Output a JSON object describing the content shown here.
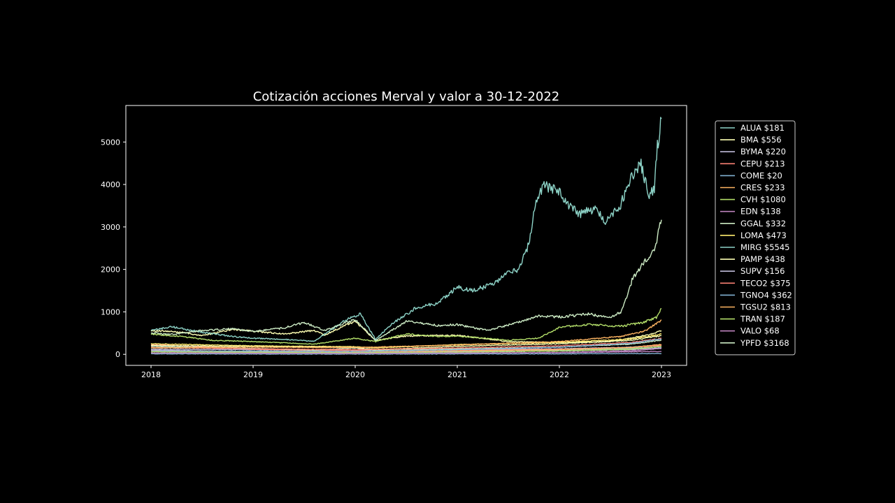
{
  "chart_data": {
    "type": "line",
    "title": "Cotización acciones Merval y valor a 30-12-2022",
    "xlabel": "",
    "ylabel": "",
    "xlim": [
      2018,
      2023
    ],
    "ylim": [
      -260,
      5860
    ],
    "x_ticks": [
      2018,
      2019,
      2020,
      2021,
      2022,
      2023
    ],
    "x_tick_labels": [
      "2018",
      "2019",
      "2020",
      "2021",
      "2022",
      "2023"
    ],
    "y_ticks": [
      0,
      1000,
      2000,
      3000,
      4000,
      5000
    ],
    "y_tick_labels": [
      "0",
      "1000",
      "2000",
      "3000",
      "4000",
      "5000"
    ],
    "grid": false,
    "legend_position": "outside-right",
    "background": "#000000",
    "series": [
      {
        "name": "ALUA $181",
        "color": "#8dd3c7",
        "points": [
          [
            2018,
            25
          ],
          [
            2019,
            30
          ],
          [
            2020,
            20
          ],
          [
            2021,
            60
          ],
          [
            2022,
            90
          ],
          [
            2022.6,
            130
          ],
          [
            2023,
            181
          ]
        ]
      },
      {
        "name": "BMA $556",
        "color": "#feffb3",
        "points": [
          [
            2018,
            560
          ],
          [
            2018.3,
            520
          ],
          [
            2018.5,
            440
          ],
          [
            2018.8,
            590
          ],
          [
            2019.3,
            480
          ],
          [
            2019.6,
            560
          ],
          [
            2019.7,
            450
          ],
          [
            2019.9,
            680
          ],
          [
            2020.0,
            780
          ],
          [
            2020.2,
            330
          ],
          [
            2020.5,
            430
          ],
          [
            2021.0,
            450
          ],
          [
            2021.5,
            300
          ],
          [
            2022.0,
            280
          ],
          [
            2022.5,
            300
          ],
          [
            2022.9,
            470
          ],
          [
            2023,
            556
          ]
        ]
      },
      {
        "name": "BYMA $220",
        "color": "#bfbbd9",
        "points": [
          [
            2018,
            120
          ],
          [
            2019,
            110
          ],
          [
            2020,
            90
          ],
          [
            2021,
            110
          ],
          [
            2022,
            130
          ],
          [
            2022.7,
            170
          ],
          [
            2023,
            220
          ]
        ]
      },
      {
        "name": "CEPU $213",
        "color": "#fa8174",
        "points": [
          [
            2018,
            230
          ],
          [
            2018.5,
            180
          ],
          [
            2019,
            120
          ],
          [
            2019.6,
            90
          ],
          [
            2020,
            100
          ],
          [
            2020.2,
            55
          ],
          [
            2021,
            90
          ],
          [
            2022,
            120
          ],
          [
            2022.7,
            160
          ],
          [
            2023,
            213
          ]
        ]
      },
      {
        "name": "COME $20",
        "color": "#81b1d2",
        "points": [
          [
            2018,
            12
          ],
          [
            2019,
            8
          ],
          [
            2020,
            6
          ],
          [
            2021,
            10
          ],
          [
            2022,
            12
          ],
          [
            2023,
            20
          ]
        ]
      },
      {
        "name": "CRES $233",
        "color": "#fdb462",
        "points": [
          [
            2018,
            90
          ],
          [
            2019,
            70
          ],
          [
            2020,
            55
          ],
          [
            2021,
            80
          ],
          [
            2022,
            110
          ],
          [
            2022.7,
            160
          ],
          [
            2023,
            233
          ]
        ]
      },
      {
        "name": "CVH $1080",
        "color": "#b3de69",
        "points": [
          [
            2018,
            480
          ],
          [
            2018.3,
            420
          ],
          [
            2018.6,
            330
          ],
          [
            2019,
            300
          ],
          [
            2019.6,
            240
          ],
          [
            2020,
            380
          ],
          [
            2020.2,
            300
          ],
          [
            2020.5,
            480
          ],
          [
            2020.8,
            420
          ],
          [
            2021,
            430
          ],
          [
            2021.5,
            330
          ],
          [
            2021.8,
            380
          ],
          [
            2022,
            640
          ],
          [
            2022.3,
            700
          ],
          [
            2022.6,
            660
          ],
          [
            2022.8,
            740
          ],
          [
            2022.95,
            860
          ],
          [
            2023,
            1080
          ]
        ]
      },
      {
        "name": "EDN $138",
        "color": "#bc82bd",
        "points": [
          [
            2018,
            60
          ],
          [
            2019,
            40
          ],
          [
            2020,
            25
          ],
          [
            2021,
            30
          ],
          [
            2022,
            45
          ],
          [
            2022.7,
            80
          ],
          [
            2023,
            138
          ]
        ]
      },
      {
        "name": "GGAL $332",
        "color": "#ccebc4",
        "points": [
          [
            2018,
            190
          ],
          [
            2018.5,
            160
          ],
          [
            2019,
            140
          ],
          [
            2019.6,
            100
          ],
          [
            2020,
            150
          ],
          [
            2020.2,
            90
          ],
          [
            2021,
            130
          ],
          [
            2022,
            170
          ],
          [
            2022.7,
            240
          ],
          [
            2023,
            332
          ]
        ]
      },
      {
        "name": "LOMA $473",
        "color": "#ffed6f",
        "points": [
          [
            2018,
            250
          ],
          [
            2019,
            200
          ],
          [
            2020,
            180
          ],
          [
            2020.2,
            150
          ],
          [
            2021,
            230
          ],
          [
            2022,
            280
          ],
          [
            2022.7,
            360
          ],
          [
            2023,
            473
          ]
        ]
      },
      {
        "name": "MIRG $5545",
        "color": "#8dd3c7",
        "points": [
          [
            2018,
            560
          ],
          [
            2018.2,
            650
          ],
          [
            2018.5,
            520
          ],
          [
            2018.8,
            420
          ],
          [
            2019,
            380
          ],
          [
            2019.3,
            350
          ],
          [
            2019.6,
            310
          ],
          [
            2019.9,
            800
          ],
          [
            2020.05,
            950
          ],
          [
            2020.2,
            350
          ],
          [
            2020.35,
            700
          ],
          [
            2020.6,
            1100
          ],
          [
            2020.8,
            1200
          ],
          [
            2021.0,
            1580
          ],
          [
            2021.15,
            1500
          ],
          [
            2021.35,
            1650
          ],
          [
            2021.5,
            1950
          ],
          [
            2021.6,
            2000
          ],
          [
            2021.7,
            2600
          ],
          [
            2021.78,
            3700
          ],
          [
            2021.85,
            4000
          ],
          [
            2022.0,
            3850
          ],
          [
            2022.1,
            3450
          ],
          [
            2022.2,
            3300
          ],
          [
            2022.35,
            3450
          ],
          [
            2022.45,
            3150
          ],
          [
            2022.6,
            3550
          ],
          [
            2022.7,
            4150
          ],
          [
            2022.8,
            4450
          ],
          [
            2022.88,
            3700
          ],
          [
            2022.93,
            3900
          ],
          [
            2022.96,
            4900
          ],
          [
            2023,
            5545
          ]
        ]
      },
      {
        "name": "PAMP $438",
        "color": "#feffb3",
        "points": [
          [
            2018,
            210
          ],
          [
            2019,
            180
          ],
          [
            2020,
            160
          ],
          [
            2020.2,
            110
          ],
          [
            2021,
            190
          ],
          [
            2022,
            250
          ],
          [
            2022.7,
            330
          ],
          [
            2023,
            438
          ]
        ]
      },
      {
        "name": "SUPV $156",
        "color": "#bfbbd9",
        "points": [
          [
            2018,
            100
          ],
          [
            2019,
            60
          ],
          [
            2020,
            40
          ],
          [
            2021,
            60
          ],
          [
            2022,
            80
          ],
          [
            2022.7,
            110
          ],
          [
            2023,
            156
          ]
        ]
      },
      {
        "name": "TECO2 $375",
        "color": "#fa8174",
        "points": [
          [
            2018,
            160
          ],
          [
            2019,
            130
          ],
          [
            2020,
            110
          ],
          [
            2021,
            150
          ],
          [
            2022,
            200
          ],
          [
            2022.7,
            280
          ],
          [
            2023,
            375
          ]
        ]
      },
      {
        "name": "TGNO4 $362",
        "color": "#81b1d2",
        "points": [
          [
            2018,
            70
          ],
          [
            2019,
            80
          ],
          [
            2020,
            70
          ],
          [
            2021,
            110
          ],
          [
            2022,
            170
          ],
          [
            2022.7,
            260
          ],
          [
            2023,
            362
          ]
        ]
      },
      {
        "name": "TGSU2 $813",
        "color": "#fdb462",
        "points": [
          [
            2018,
            150
          ],
          [
            2019,
            170
          ],
          [
            2020,
            160
          ],
          [
            2021,
            220
          ],
          [
            2022,
            300
          ],
          [
            2022.6,
            420
          ],
          [
            2022.85,
            560
          ],
          [
            2023,
            813
          ]
        ]
      },
      {
        "name": "TRAN $187",
        "color": "#b3de69",
        "points": [
          [
            2018,
            60
          ],
          [
            2019,
            50
          ],
          [
            2020,
            35
          ],
          [
            2021,
            50
          ],
          [
            2022,
            80
          ],
          [
            2022.7,
            120
          ],
          [
            2023,
            187
          ]
        ]
      },
      {
        "name": "VALO $68",
        "color": "#bc82bd",
        "points": [
          [
            2018,
            30
          ],
          [
            2019,
            25
          ],
          [
            2020,
            20
          ],
          [
            2021,
            30
          ],
          [
            2022,
            40
          ],
          [
            2023,
            68
          ]
        ]
      },
      {
        "name": "YPFD $3168",
        "color": "#ccebc4",
        "points": [
          [
            2018,
            500
          ],
          [
            2018.2,
            470
          ],
          [
            2018.5,
            560
          ],
          [
            2018.8,
            600
          ],
          [
            2019,
            540
          ],
          [
            2019.3,
            620
          ],
          [
            2019.5,
            750
          ],
          [
            2019.7,
            560
          ],
          [
            2020,
            820
          ],
          [
            2020.2,
            320
          ],
          [
            2020.5,
            780
          ],
          [
            2020.8,
            680
          ],
          [
            2021,
            700
          ],
          [
            2021.3,
            560
          ],
          [
            2021.6,
            760
          ],
          [
            2021.8,
            900
          ],
          [
            2022,
            880
          ],
          [
            2022.3,
            950
          ],
          [
            2022.5,
            850
          ],
          [
            2022.6,
            1000
          ],
          [
            2022.65,
            1300
          ],
          [
            2022.72,
            1800
          ],
          [
            2022.8,
            2050
          ],
          [
            2022.88,
            2300
          ],
          [
            2022.93,
            2500
          ],
          [
            2022.97,
            2850
          ],
          [
            2023,
            3168
          ]
        ]
      }
    ]
  }
}
